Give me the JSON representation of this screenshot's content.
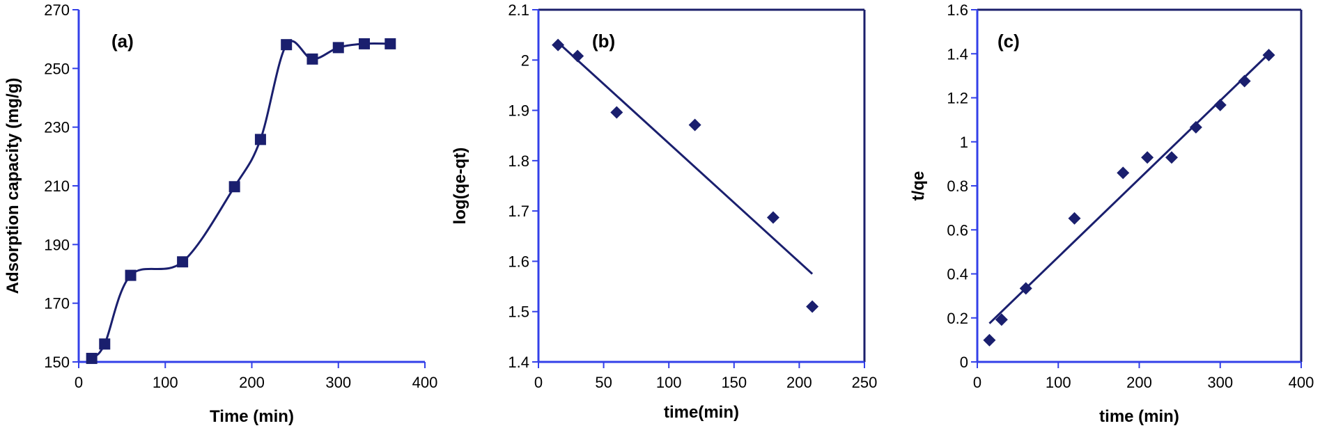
{
  "colors": {
    "axis": "#3340e8",
    "frame": "#1b1f6b",
    "data": "#1a1f6e"
  },
  "chart_data": [
    {
      "type": "line",
      "panel_label": "(a)",
      "xlabel": "Time (min)",
      "ylabel": "Adsorption capacity (mg/g)",
      "xlim": [
        0,
        400
      ],
      "ylim": [
        150,
        270
      ],
      "xticks": [
        0,
        100,
        200,
        300,
        400
      ],
      "yticks": [
        150,
        170,
        190,
        210,
        230,
        250,
        270
      ],
      "marker": "square",
      "smooth": true,
      "series": [
        {
          "x": [
            15,
            30,
            60,
            120,
            180,
            210,
            240,
            270,
            300,
            330,
            360
          ],
          "y": [
            151.2,
            156.1,
            179.5,
            184.1,
            209.7,
            225.8,
            258.1,
            253.2,
            257.1,
            258.4,
            258.4
          ]
        }
      ]
    },
    {
      "type": "scatter",
      "panel_label": "(b)",
      "xlabel": "time(min)",
      "ylabel": "log(qe-qt)",
      "xlim": [
        0,
        250
      ],
      "ylim": [
        1.4,
        2.1
      ],
      "xticks": [
        0,
        50,
        100,
        150,
        200,
        250
      ],
      "yticks": [
        1.4,
        1.5,
        1.6,
        1.7,
        1.8,
        1.9,
        2,
        2.1
      ],
      "marker": "diamond",
      "series": [
        {
          "x": [
            15,
            30,
            60,
            120,
            180,
            210
          ],
          "y": [
            2.03,
            2.008,
            1.896,
            1.871,
            1.687,
            1.51
          ]
        }
      ],
      "trendline": {
        "x": [
          15,
          210
        ],
        "y": [
          2.035,
          1.575
        ]
      }
    },
    {
      "type": "scatter",
      "panel_label": "(c)",
      "xlabel": "time (min)",
      "ylabel": "t/qe",
      "xlim": [
        0,
        400
      ],
      "ylim": [
        0,
        1.6
      ],
      "xticks": [
        0,
        100,
        200,
        300,
        400
      ],
      "yticks": [
        0,
        0.2,
        0.4,
        0.6,
        0.8,
        1,
        1.2,
        1.4,
        1.6
      ],
      "marker": "diamond",
      "series": [
        {
          "x": [
            15,
            30,
            60,
            120,
            180,
            210,
            240,
            270,
            300,
            330,
            360
          ],
          "y": [
            0.099,
            0.192,
            0.334,
            0.652,
            0.859,
            0.929,
            0.929,
            1.066,
            1.167,
            1.276,
            1.394
          ]
        }
      ],
      "trendline": {
        "x": [
          15,
          360
        ],
        "y": [
          0.175,
          1.4
        ]
      }
    }
  ]
}
